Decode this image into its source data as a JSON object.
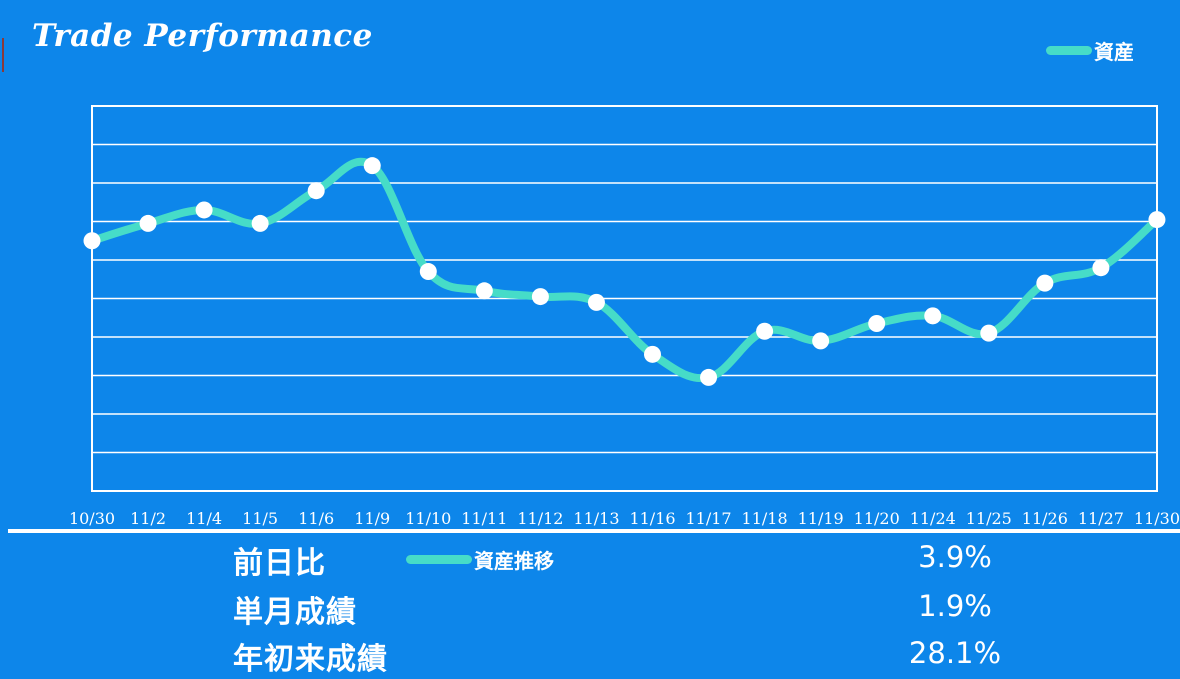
{
  "title": "Trade Performance",
  "legend_label": "資産",
  "legend2_label": "資産推移",
  "colors": {
    "background": "#0d86ea",
    "line": "#46dcc8",
    "grid": "#ffffff",
    "point": "#ffffff"
  },
  "chart_data": {
    "type": "line",
    "categories": [
      "10/30",
      "11/2",
      "11/4",
      "11/5",
      "11/6",
      "11/9",
      "11/10",
      "11/11",
      "11/12",
      "11/13",
      "11/16",
      "11/17",
      "11/18",
      "11/19",
      "11/20",
      "11/24",
      "11/25",
      "11/26",
      "11/27",
      "11/30"
    ],
    "series": [
      {
        "name": "資産",
        "values": [
          6.5,
          6.95,
          7.3,
          6.95,
          7.8,
          8.45,
          5.7,
          5.2,
          5.05,
          4.9,
          3.55,
          2.95,
          4.15,
          3.9,
          4.35,
          4.55,
          4.1,
          5.4,
          5.8,
          7.05
        ]
      }
    ],
    "ylim": [
      0,
      10
    ],
    "grid": true,
    "legend": "top-right",
    "xlabel": "",
    "ylabel": ""
  },
  "stats": [
    {
      "label": "前日比",
      "value": "3.9%"
    },
    {
      "label": "単月成績",
      "value": "1.9%"
    },
    {
      "label": "年初来成績",
      "value": "28.1%"
    }
  ]
}
